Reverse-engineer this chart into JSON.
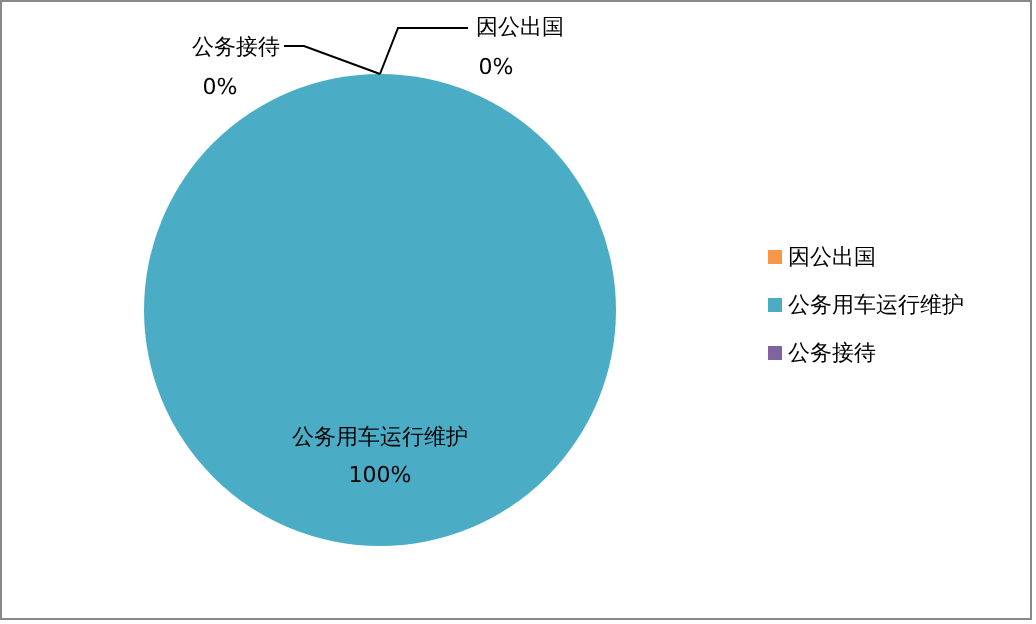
{
  "chart_data": {
    "type": "pie",
    "categories": [
      "因公出国",
      "公务用车运行维护",
      "公务接待"
    ],
    "values": [
      0,
      100,
      0
    ],
    "colors": [
      "#f79646",
      "#4bacc6",
      "#8064a2"
    ],
    "value_labels": [
      "0%",
      "100%",
      "0%"
    ],
    "legend": "right"
  }
}
